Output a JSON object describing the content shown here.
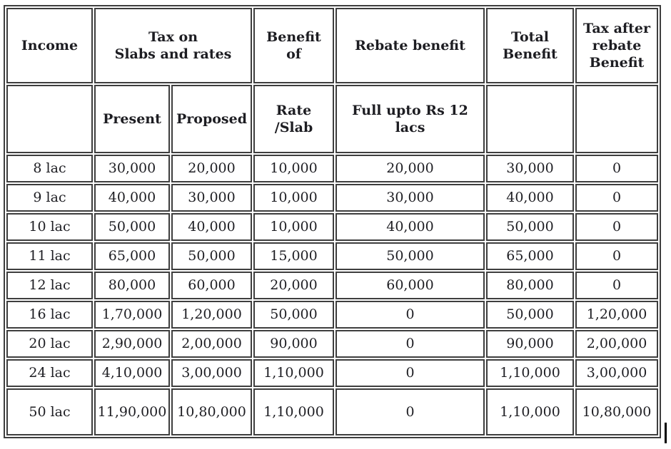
{
  "table": {
    "header_row1": {
      "income": "Income",
      "tax_on_slabs": "Tax on\nSlabs and rates",
      "benefit_of": "Benefit\nof",
      "rebate_benefit": "Rebate benefit",
      "total_benefit": "Total\nBenefit",
      "tax_after_rebate": "Tax after\nrebate\nBenefit"
    },
    "header_row2": {
      "income_sub": "",
      "present": "Present",
      "proposed": "Proposed",
      "rate_slab": "Rate\n/Slab",
      "full_upto": "Full upto Rs 12\nlacs",
      "total_sub": "",
      "after_sub": ""
    },
    "rows": [
      [
        "8 lac",
        "30,000",
        "20,000",
        "10,000",
        "20,000",
        "30,000",
        "0"
      ],
      [
        "9 lac",
        "40,000",
        "30,000",
        "10,000",
        "30,000",
        "40,000",
        "0"
      ],
      [
        "10 lac",
        "50,000",
        "40,000",
        "10,000",
        "40,000",
        "50,000",
        "0"
      ],
      [
        "11 lac",
        "65,000",
        "50,000",
        "15,000",
        "50,000",
        "65,000",
        "0"
      ],
      [
        "12 lac",
        "80,000",
        "60,000",
        "20,000",
        "60,000",
        "80,000",
        "0"
      ],
      [
        "16 lac",
        "1,70,000",
        "1,20,000",
        "50,000",
        "0",
        "50,000",
        "1,20,000"
      ],
      [
        "20 lac",
        "2,90,000",
        "2,00,000",
        "90,000",
        "0",
        "90,000",
        "2,00,000"
      ],
      [
        "24 lac",
        "4,10,000",
        "3,00,000",
        "1,10,000",
        "0",
        "1,10,000",
        "3,00,000"
      ],
      [
        "50 lac",
        "11,90,000",
        "10,80,000",
        "1,10,000",
        "0",
        "1,10,000",
        "10,80,000"
      ]
    ],
    "colors": {
      "border": "#3e3e3e",
      "text": "#1d1d22",
      "cell_background": "#ffffff"
    }
  }
}
